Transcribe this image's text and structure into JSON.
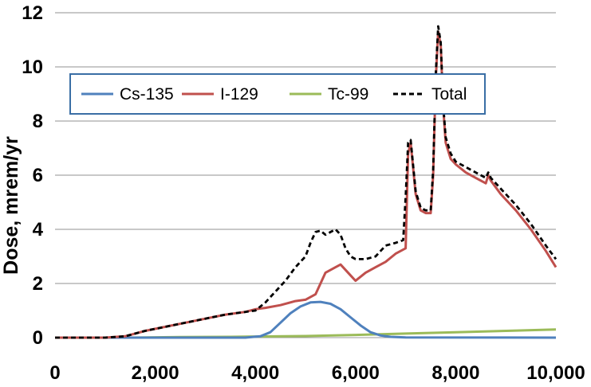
{
  "chart_data": {
    "type": "line",
    "title": "",
    "xlabel": "",
    "ylabel": "Dose, mrem/yr",
    "xlim": [
      0,
      10000
    ],
    "ylim": [
      0,
      12
    ],
    "grid": "horizontal",
    "legend_position": "top-left",
    "x_ticks": [
      0,
      2000,
      4000,
      6000,
      8000,
      10000
    ],
    "x_tick_labels": [
      "0",
      "2,000",
      "4,000",
      "6,000",
      "8,000",
      "10,000"
    ],
    "y_ticks": [
      0,
      2,
      4,
      6,
      8,
      10,
      12
    ],
    "y_tick_labels": [
      "0",
      "2",
      "4",
      "6",
      "8",
      "10",
      "12"
    ],
    "series": [
      {
        "name": "Cs-135",
        "color": "#4f81bd",
        "style": "solid",
        "x": [
          0,
          3800,
          4100,
          4300,
          4500,
          4700,
          4900,
          5100,
          5300,
          5500,
          5700,
          5900,
          6100,
          6300,
          6500,
          6700,
          7000,
          10000
        ],
        "y": [
          0,
          0,
          0.05,
          0.2,
          0.55,
          0.9,
          1.15,
          1.3,
          1.32,
          1.25,
          1.05,
          0.75,
          0.45,
          0.2,
          0.08,
          0.03,
          0.01,
          0
        ]
      },
      {
        "name": "I-129",
        "color": "#c0504d",
        "style": "solid",
        "x": [
          0,
          1000,
          1400,
          1800,
          2200,
          2600,
          3000,
          3400,
          3800,
          4000,
          4200,
          4500,
          4800,
          5000,
          5200,
          5400,
          5600,
          5700,
          5900,
          6000,
          6200,
          6400,
          6600,
          6800,
          7000,
          7050,
          7100,
          7200,
          7300,
          7400,
          7500,
          7550,
          7600,
          7650,
          7700,
          7750,
          7800,
          7900,
          8000,
          8200,
          8400,
          8600,
          8650,
          8700,
          8900,
          9200,
          9500,
          9800,
          10000
        ],
        "y": [
          0,
          0,
          0.05,
          0.25,
          0.4,
          0.55,
          0.7,
          0.85,
          0.95,
          1.05,
          1.1,
          1.2,
          1.35,
          1.4,
          1.6,
          2.4,
          2.6,
          2.7,
          2.3,
          2.1,
          2.4,
          2.6,
          2.8,
          3.1,
          3.3,
          6.8,
          7.2,
          5.3,
          4.7,
          4.6,
          4.6,
          6.0,
          9.5,
          11.3,
          10.8,
          8.5,
          7.2,
          6.6,
          6.4,
          6.1,
          5.9,
          5.7,
          6.0,
          5.8,
          5.3,
          4.7,
          4.0,
          3.2,
          2.6
        ]
      },
      {
        "name": "Tc-99",
        "color": "#9bbb59",
        "style": "solid",
        "x": [
          0,
          1500,
          2500,
          3500,
          4000,
          5000,
          6000,
          7000,
          8000,
          9000,
          10000
        ],
        "y": [
          0,
          0,
          0.02,
          0.03,
          0.04,
          0.06,
          0.1,
          0.15,
          0.2,
          0.25,
          0.3
        ]
      },
      {
        "name": "Total",
        "color": "#000000",
        "style": "dashed",
        "x": [
          0,
          1000,
          1400,
          1800,
          2200,
          2600,
          3000,
          3400,
          3800,
          4000,
          4200,
          4400,
          4600,
          4800,
          5000,
          5100,
          5200,
          5300,
          5400,
          5500,
          5600,
          5700,
          5800,
          5900,
          6000,
          6200,
          6400,
          6600,
          6800,
          6950,
          7000,
          7050,
          7100,
          7200,
          7300,
          7400,
          7500,
          7550,
          7600,
          7650,
          7700,
          7750,
          7800,
          7900,
          8000,
          8200,
          8400,
          8600,
          8650,
          8700,
          8900,
          9200,
          9500,
          9800,
          10000
        ],
        "y": [
          0,
          0,
          0.05,
          0.25,
          0.4,
          0.55,
          0.7,
          0.85,
          0.95,
          1.0,
          1.3,
          1.7,
          2.1,
          2.6,
          3.0,
          3.5,
          3.9,
          3.95,
          3.8,
          3.9,
          4.0,
          3.8,
          3.3,
          3.0,
          2.9,
          2.9,
          3.0,
          3.4,
          3.5,
          3.6,
          5.2,
          7.2,
          7.3,
          5.4,
          4.8,
          4.7,
          4.7,
          6.2,
          9.7,
          11.5,
          10.9,
          8.6,
          7.4,
          6.8,
          6.5,
          6.3,
          6.1,
          5.9,
          6.1,
          5.9,
          5.5,
          4.9,
          4.2,
          3.4,
          2.9
        ]
      }
    ]
  }
}
